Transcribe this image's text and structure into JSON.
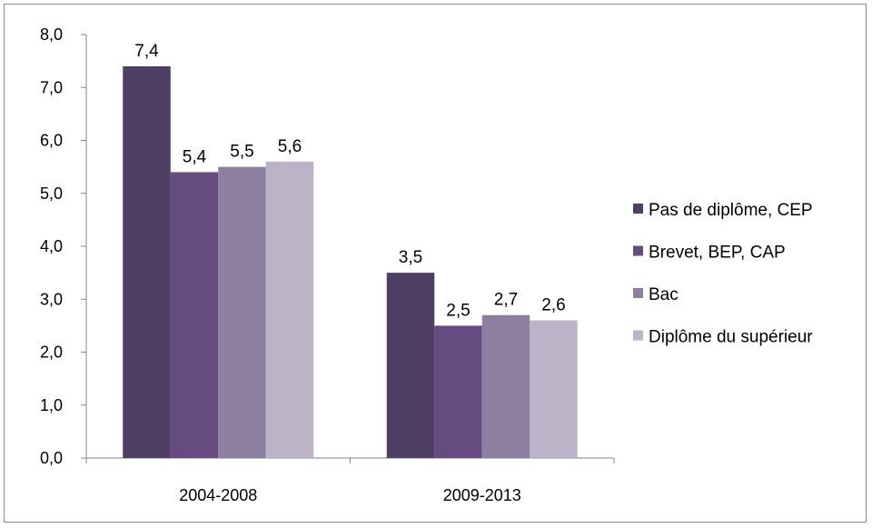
{
  "chart_data": {
    "type": "bar",
    "categories": [
      "2004-2008",
      "2009-2013"
    ],
    "series": [
      {
        "name": "Pas de diplôme, CEP",
        "values": [
          7.4,
          3.5
        ],
        "labels": [
          "7,4",
          "3,5"
        ],
        "color": "#4f3f64"
      },
      {
        "name": "Brevet, BEP, CAP",
        "values": [
          5.4,
          2.5
        ],
        "labels": [
          "5,4",
          "2,5"
        ],
        "color": "#654b80"
      },
      {
        "name": "Bac",
        "values": [
          5.5,
          2.7
        ],
        "labels": [
          "5,5",
          "2,7"
        ],
        "color": "#8c7fa0"
      },
      {
        "name": "Diplôme du supérieur",
        "values": [
          5.6,
          2.6
        ],
        "labels": [
          "5,6",
          "2,6"
        ],
        "color": "#bcb3c9"
      }
    ],
    "yticks": [
      0,
      1,
      2,
      3,
      4,
      5,
      6,
      7,
      8
    ],
    "ytick_labels": [
      "0,0",
      "1,0",
      "2,0",
      "3,0",
      "4,0",
      "5,0",
      "6,0",
      "7,0",
      "8,0"
    ],
    "ylim": [
      0,
      8
    ],
    "xlabel": "",
    "ylabel": "",
    "title": "",
    "legend_position": "right",
    "grid": false
  }
}
